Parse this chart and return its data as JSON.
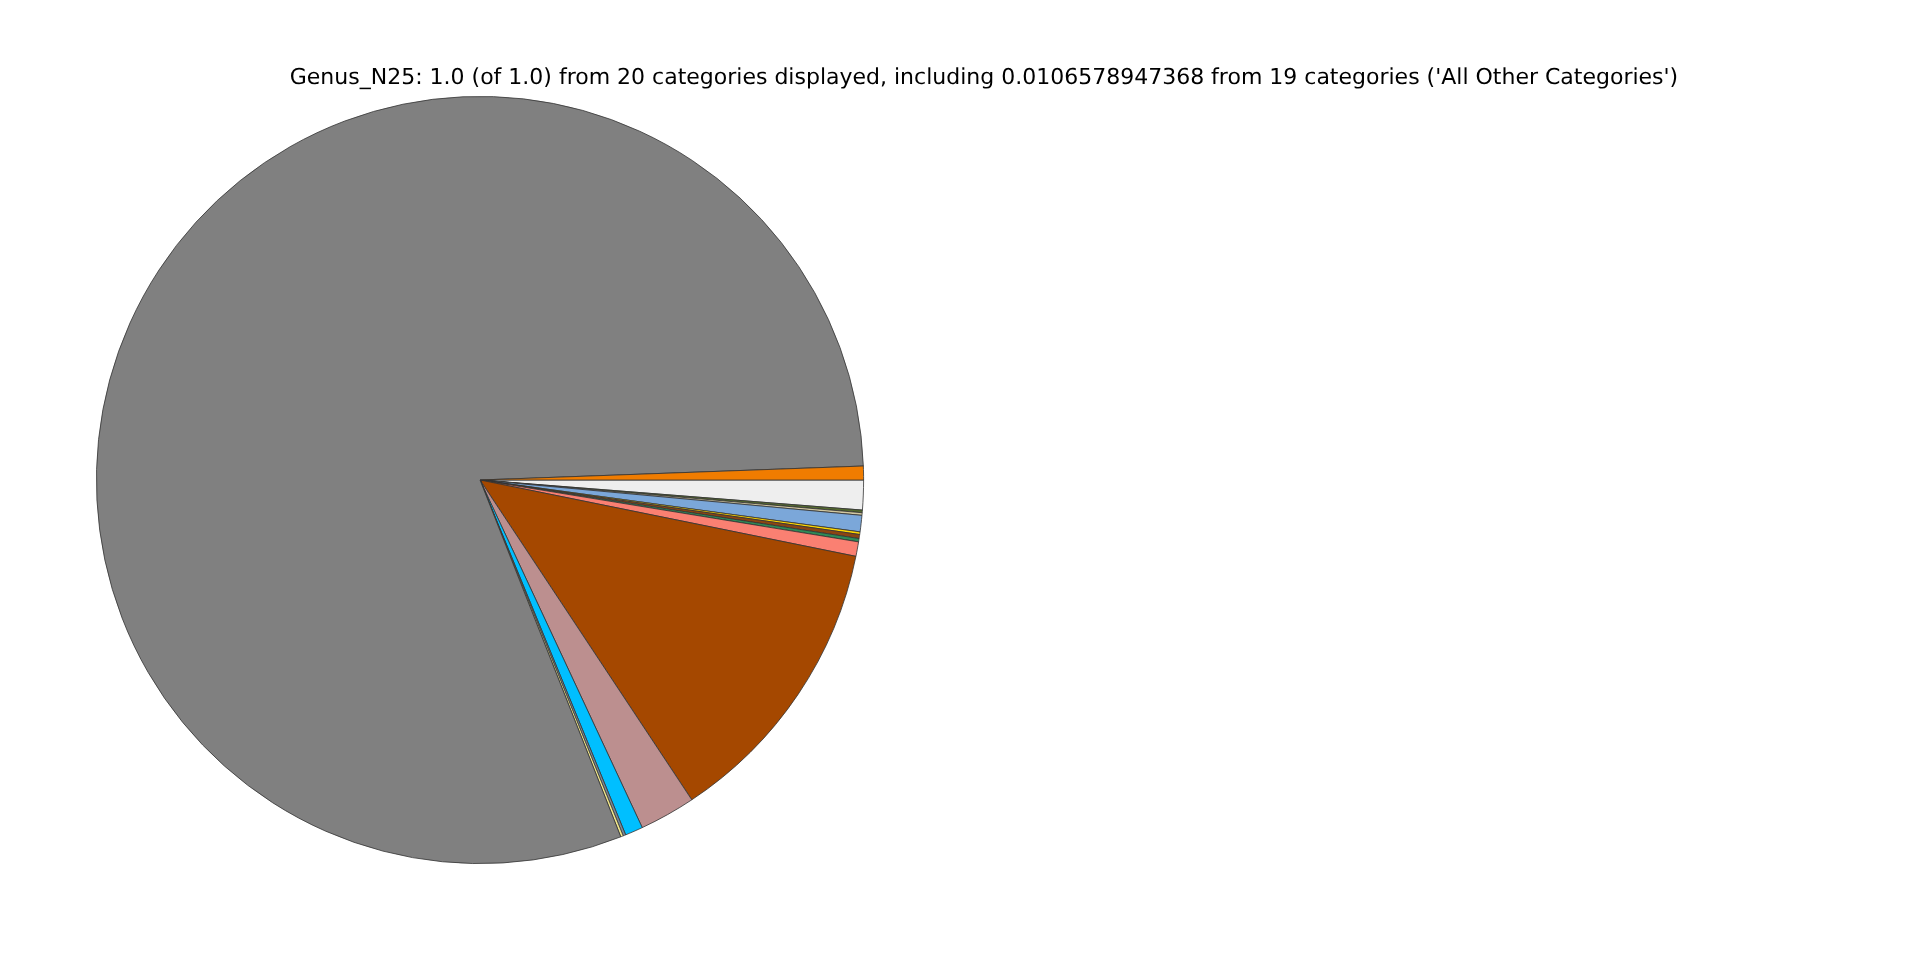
{
  "chart_data": {
    "type": "pie",
    "title": "Genus_N25: 1.0 (of 1.0) from 20 categories displayed, including 0.0106578947368 from 19 categories ('All Other Categories')",
    "categories": [
      null,
      null,
      null,
      null,
      null,
      null,
      null,
      null,
      null,
      null,
      null,
      null,
      null,
      null,
      null
    ],
    "values": [
      1.25,
      0.11,
      0.11,
      0.69,
      0.11,
      0.17,
      0.14,
      0.61,
      12.5,
      2.36,
      0.75,
      0.11,
      0.11,
      80.4,
      0.58
    ],
    "colors": [
      "#eeeeee",
      "#556b2f",
      "#d2c8a0",
      "#7ba7d9",
      "#ffd700",
      "#8b4513",
      "#2e8b57",
      "#fa8072",
      "#a54800",
      "#bc8f8f",
      "#00bfff",
      "#778899",
      "#f0e68c",
      "#808080",
      "#f07c00"
    ],
    "legend": false
  }
}
